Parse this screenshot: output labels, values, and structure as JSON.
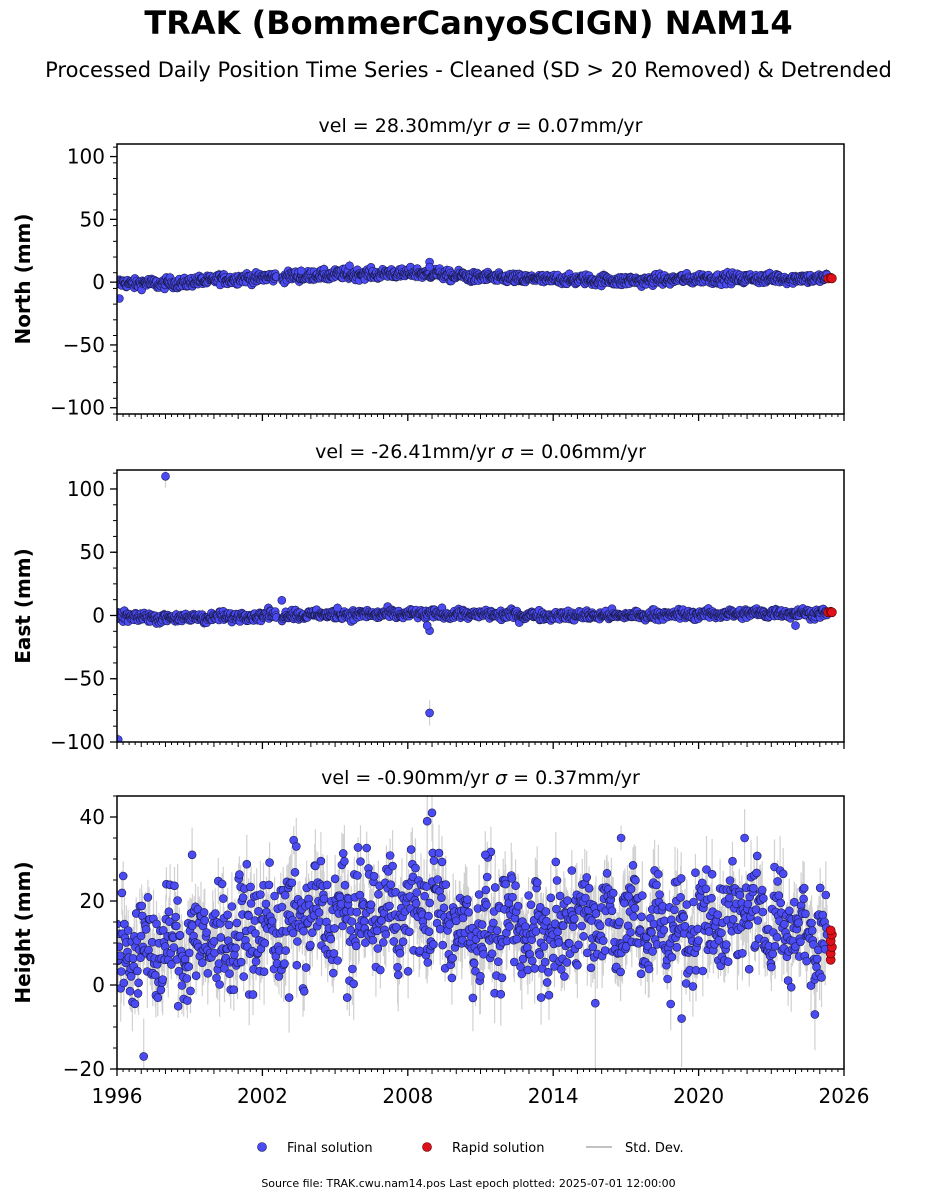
{
  "title": "TRAK (BommerCanyoSCIGN) NAM14",
  "subtitle": "Processed Daily Position Time Series - Cleaned (SD > 20 Removed) & Detrended",
  "footer": "Source file: TRAK.cwu.nam14.pos  Last epoch plotted: 2025-07-01 12:00:00",
  "colors": {
    "final": "#4b4bf5",
    "rapid": "#e0101a",
    "std": "#9a9a9a",
    "edge": "#1a1a4a"
  },
  "legend": {
    "final": "Final solution",
    "rapid": "Rapid solution",
    "std": "Std. Dev."
  },
  "chart_data": [
    {
      "type": "scatter",
      "title": "vel = 28.30mm/yr   σ = 0.07mm/yr",
      "title_parts": {
        "a": "vel = 28.30mm/yr   ",
        "sym": "σ",
        "b": " = 0.07mm/yr"
      },
      "ylabel": "North (mm)",
      "xlim": [
        1996,
        2026
      ],
      "ylim": [
        -105,
        110
      ],
      "yticks": [
        -100,
        -50,
        0,
        50,
        100
      ],
      "ytick_labels": [
        "−100",
        "−50",
        "0",
        "50",
        "100"
      ],
      "series": [
        {
          "name": "Final solution",
          "trend": [
            [
              1996,
              -1
            ],
            [
              1998.5,
              -1
            ],
            [
              2000,
              2
            ],
            [
              2002.5,
              4
            ],
            [
              2005,
              6
            ],
            [
              2007.5,
              7
            ],
            [
              2009,
              7
            ],
            [
              2010,
              5
            ],
            [
              2012,
              3
            ],
            [
              2015,
              2
            ],
            [
              2017.5,
              1
            ],
            [
              2020,
              3
            ],
            [
              2023,
              3
            ],
            [
              2025.4,
              3
            ]
          ],
          "scatter": 2.0,
          "sd": 3.0,
          "outliers": [
            [
              1996.1,
              -13
            ],
            [
              2008.9,
              16
            ],
            [
              2008.9,
              12
            ],
            [
              2005.6,
              13
            ],
            [
              2003.6,
              9
            ]
          ]
        },
        {
          "name": "Rapid solution",
          "points": [
            [
              2025.35,
              3
            ],
            [
              2025.45,
              3.5
            ],
            [
              2025.5,
              3
            ]
          ]
        }
      ]
    },
    {
      "type": "scatter",
      "title": "vel = -26.41mm/yr   σ = 0.06mm/yr",
      "title_parts": {
        "a": "vel = -26.41mm/yr   ",
        "sym": "σ",
        "b": " = 0.06mm/yr"
      },
      "ylabel": "East (mm)",
      "xlim": [
        1996,
        2026
      ],
      "ylim": [
        -100,
        115
      ],
      "yticks": [
        -100,
        -50,
        0,
        50,
        100
      ],
      "ytick_labels": [
        "−100",
        "−50",
        "0",
        "50",
        "100"
      ],
      "series": [
        {
          "name": "Final solution",
          "trend": [
            [
              1996,
              -1
            ],
            [
              1999,
              -2
            ],
            [
              2002,
              0
            ],
            [
              2005,
              1
            ],
            [
              2008,
              1
            ],
            [
              2011,
              1
            ],
            [
              2014,
              0
            ],
            [
              2017,
              0
            ],
            [
              2020,
              1
            ],
            [
              2023,
              2
            ],
            [
              2025.4,
              2
            ]
          ],
          "scatter": 1.8,
          "sd": 3.0,
          "outliers": [
            [
              1998.0,
              110
            ],
            [
              1996.05,
              -98
            ],
            [
              2008.9,
              -77
            ],
            [
              2008.9,
              -12
            ],
            [
              2008.8,
              -8
            ],
            [
              2002.8,
              12
            ],
            [
              2024.0,
              -8
            ],
            [
              2005.1,
              6
            ]
          ]
        },
        {
          "name": "Rapid solution",
          "points": [
            [
              2025.35,
              2.5
            ],
            [
              2025.45,
              3
            ],
            [
              2025.5,
              2.5
            ]
          ]
        }
      ]
    },
    {
      "type": "scatter",
      "title": "vel = -0.90mm/yr   σ = 0.37mm/yr",
      "title_parts": {
        "a": "vel = -0.90mm/yr   ",
        "sym": "σ",
        "b": " = 0.37mm/yr"
      },
      "ylabel": "Height (mm)",
      "xlim": [
        1996,
        2026
      ],
      "ylim": [
        -20,
        45
      ],
      "yticks": [
        -20,
        0,
        20,
        40
      ],
      "ytick_labels": [
        "−20",
        "0",
        "20",
        "40"
      ],
      "xticks": [
        1996,
        2002,
        2008,
        2014,
        2020,
        2026
      ],
      "xtick_labels": [
        "1996",
        "2002",
        "2008",
        "2014",
        "2020",
        "2026"
      ],
      "series": [
        {
          "name": "Final solution",
          "trend": [
            [
              1996,
              8
            ],
            [
              1998.5,
              9
            ],
            [
              2001,
              12
            ],
            [
              2004,
              16
            ],
            [
              2007,
              17
            ],
            [
              2009,
              18
            ],
            [
              2010,
              14
            ],
            [
              2013,
              13
            ],
            [
              2016,
              16
            ],
            [
              2019,
              13
            ],
            [
              2022,
              17
            ],
            [
              2024,
              14
            ],
            [
              2025.4,
              10
            ]
          ],
          "scatter": 6.0,
          "sd": 6.0,
          "outliers": [
            [
              1997.1,
              -17
            ],
            [
              2009.0,
              41
            ],
            [
              2008.8,
              39
            ],
            [
              2016.8,
              35
            ],
            [
              2021.9,
              35
            ],
            [
              2003.4,
              33
            ],
            [
              1999.1,
              31
            ],
            [
              2011.2,
              31
            ],
            [
              2018.1,
              8
            ],
            [
              2019.3,
              -8
            ],
            [
              2024.8,
              -7
            ],
            [
              2003.1,
              -3
            ],
            [
              2005.5,
              -3
            ],
            [
              2013.5,
              -3
            ]
          ]
        },
        {
          "name": "Rapid solution",
          "points": [
            [
              2025.45,
              6
            ],
            [
              2025.45,
              7.5
            ],
            [
              2025.5,
              9
            ],
            [
              2025.45,
              10.5
            ],
            [
              2025.5,
              12
            ],
            [
              2025.45,
              13
            ]
          ]
        }
      ]
    }
  ]
}
